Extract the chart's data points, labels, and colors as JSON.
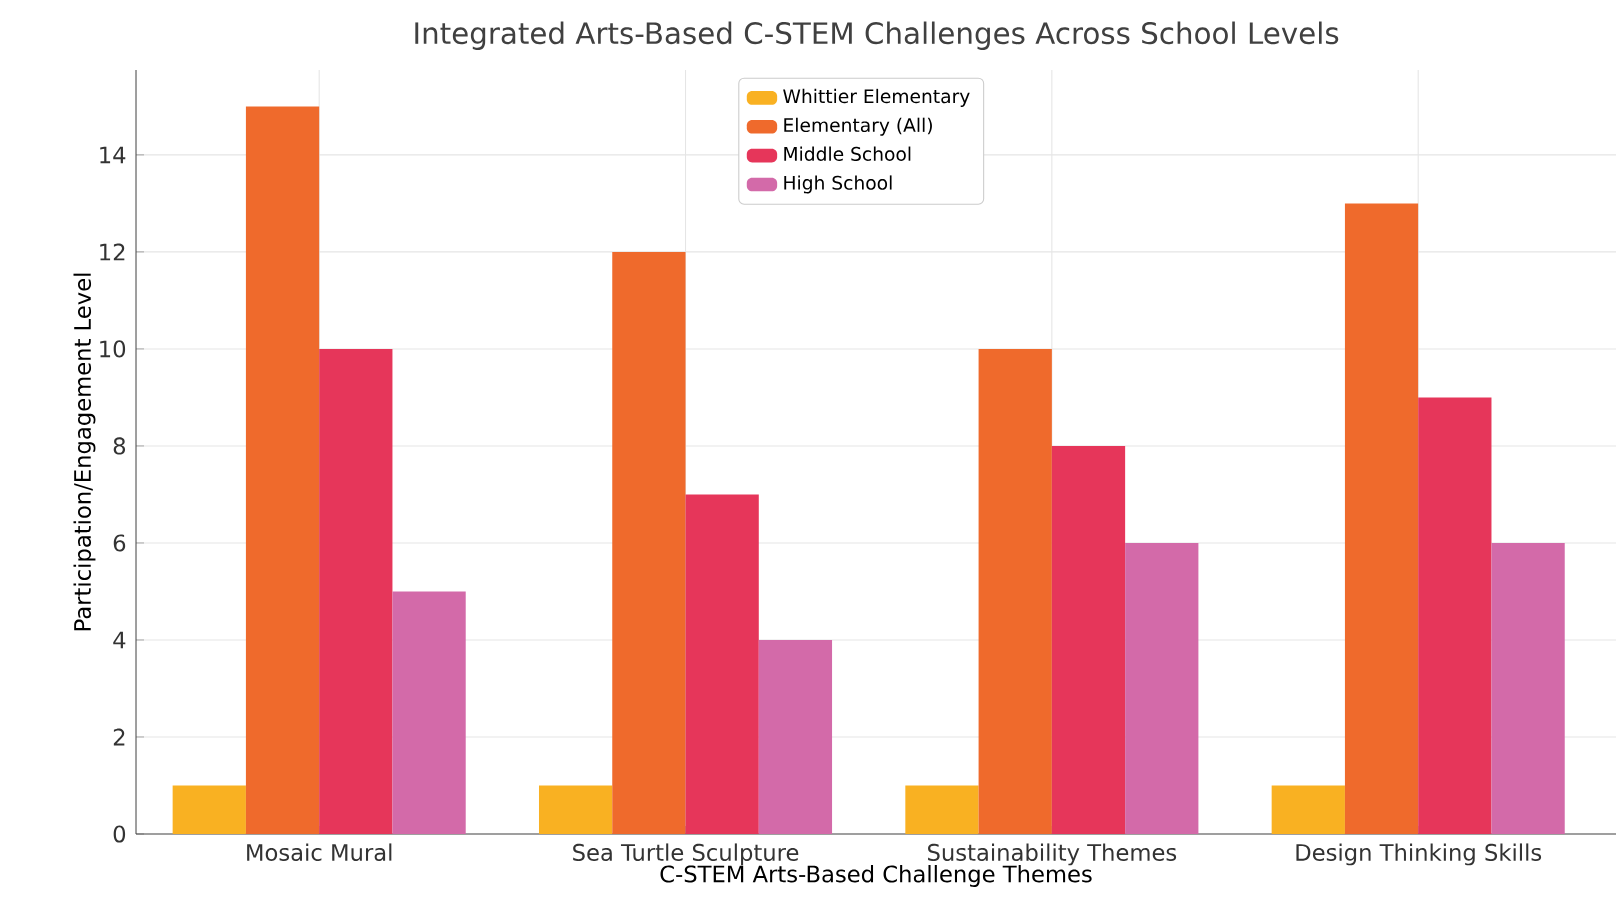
{
  "chart_data": {
    "type": "bar",
    "title": "Integrated Arts-Based C-STEM Challenges Across School Levels",
    "xlabel": "C-STEM Arts-Based Challenge Themes",
    "ylabel": "Participation/Engagement Level",
    "categories": [
      "Mosaic Mural",
      "Sea Turtle Sculpture",
      "Sustainability Themes",
      "Design Thinking Skills"
    ],
    "series": [
      {
        "name": "Whittier Elementary",
        "color": "#f9b122",
        "values": [
          1,
          1,
          1,
          1
        ]
      },
      {
        "name": "Elementary (All)",
        "color": "#ef6a2c",
        "values": [
          15,
          12,
          10,
          13
        ]
      },
      {
        "name": "Middle School",
        "color": "#e6365a",
        "values": [
          10,
          7,
          8,
          9
        ]
      },
      {
        "name": "High School",
        "color": "#d36aa9",
        "values": [
          5,
          4,
          6,
          6
        ]
      }
    ],
    "ylim": [
      0,
      15.75
    ],
    "yticks": [
      0,
      2,
      4,
      6,
      8,
      10,
      12,
      14
    ],
    "grid": true,
    "legend": "top"
  }
}
